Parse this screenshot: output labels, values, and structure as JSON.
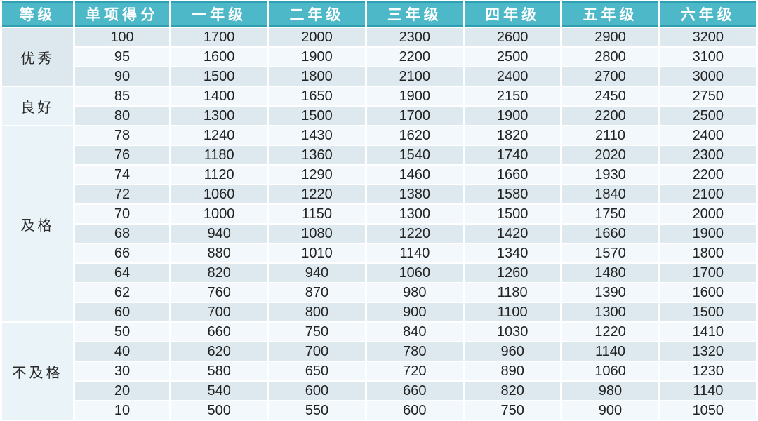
{
  "chart_data": {
    "type": "table",
    "columns": [
      "等级",
      "单项得分",
      "一年级",
      "二年级",
      "三年级",
      "四年级",
      "五年级",
      "六年级"
    ],
    "row_groups": [
      {
        "label": "优秀",
        "rows": [
          [
            "100",
            "1700",
            "2000",
            "2300",
            "2600",
            "2900",
            "3200"
          ],
          [
            "95",
            "1600",
            "1900",
            "2200",
            "2500",
            "2800",
            "3100"
          ],
          [
            "90",
            "1500",
            "1800",
            "2100",
            "2400",
            "2700",
            "3000"
          ]
        ]
      },
      {
        "label": "良好",
        "rows": [
          [
            "85",
            "1400",
            "1650",
            "1900",
            "2150",
            "2450",
            "2750"
          ],
          [
            "80",
            "1300",
            "1500",
            "1700",
            "1900",
            "2200",
            "2500"
          ]
        ]
      },
      {
        "label": "及格",
        "rows": [
          [
            "78",
            "1240",
            "1430",
            "1620",
            "1820",
            "2110",
            "2400"
          ],
          [
            "76",
            "1180",
            "1360",
            "1540",
            "1740",
            "2020",
            "2300"
          ],
          [
            "74",
            "1120",
            "1290",
            "1460",
            "1660",
            "1930",
            "2200"
          ],
          [
            "72",
            "1060",
            "1220",
            "1380",
            "1580",
            "1840",
            "2100"
          ],
          [
            "70",
            "1000",
            "1150",
            "1300",
            "1500",
            "1750",
            "2000"
          ],
          [
            "68",
            "940",
            "1080",
            "1220",
            "1420",
            "1660",
            "1900"
          ],
          [
            "66",
            "880",
            "1010",
            "1140",
            "1340",
            "1570",
            "1800"
          ],
          [
            "64",
            "820",
            "940",
            "1060",
            "1260",
            "1480",
            "1700"
          ],
          [
            "62",
            "760",
            "870",
            "980",
            "1180",
            "1390",
            "1600"
          ],
          [
            "60",
            "700",
            "800",
            "900",
            "1100",
            "1300",
            "1500"
          ]
        ]
      },
      {
        "label": "不及格",
        "rows": [
          [
            "50",
            "660",
            "750",
            "840",
            "1030",
            "1220",
            "1410"
          ],
          [
            "40",
            "620",
            "700",
            "780",
            "960",
            "1140",
            "1320"
          ],
          [
            "30",
            "580",
            "650",
            "720",
            "890",
            "1060",
            "1230"
          ],
          [
            "20",
            "540",
            "600",
            "660",
            "820",
            "980",
            "1140"
          ],
          [
            "10",
            "500",
            "550",
            "600",
            "750",
            "900",
            "1050"
          ]
        ]
      }
    ]
  },
  "colors": {
    "header_bg": "#4cb8c8",
    "header_edge": "#2fa0b3",
    "header_text": "#ffffff",
    "row_even_bg": "#dde9ef",
    "row_odd_bg": "#f2f8fc",
    "label_excellent_bg": "#dce8ee",
    "label_default_bg": "#eaf3f8",
    "cell_text": "#222222",
    "page_bg": "#ffffff"
  }
}
